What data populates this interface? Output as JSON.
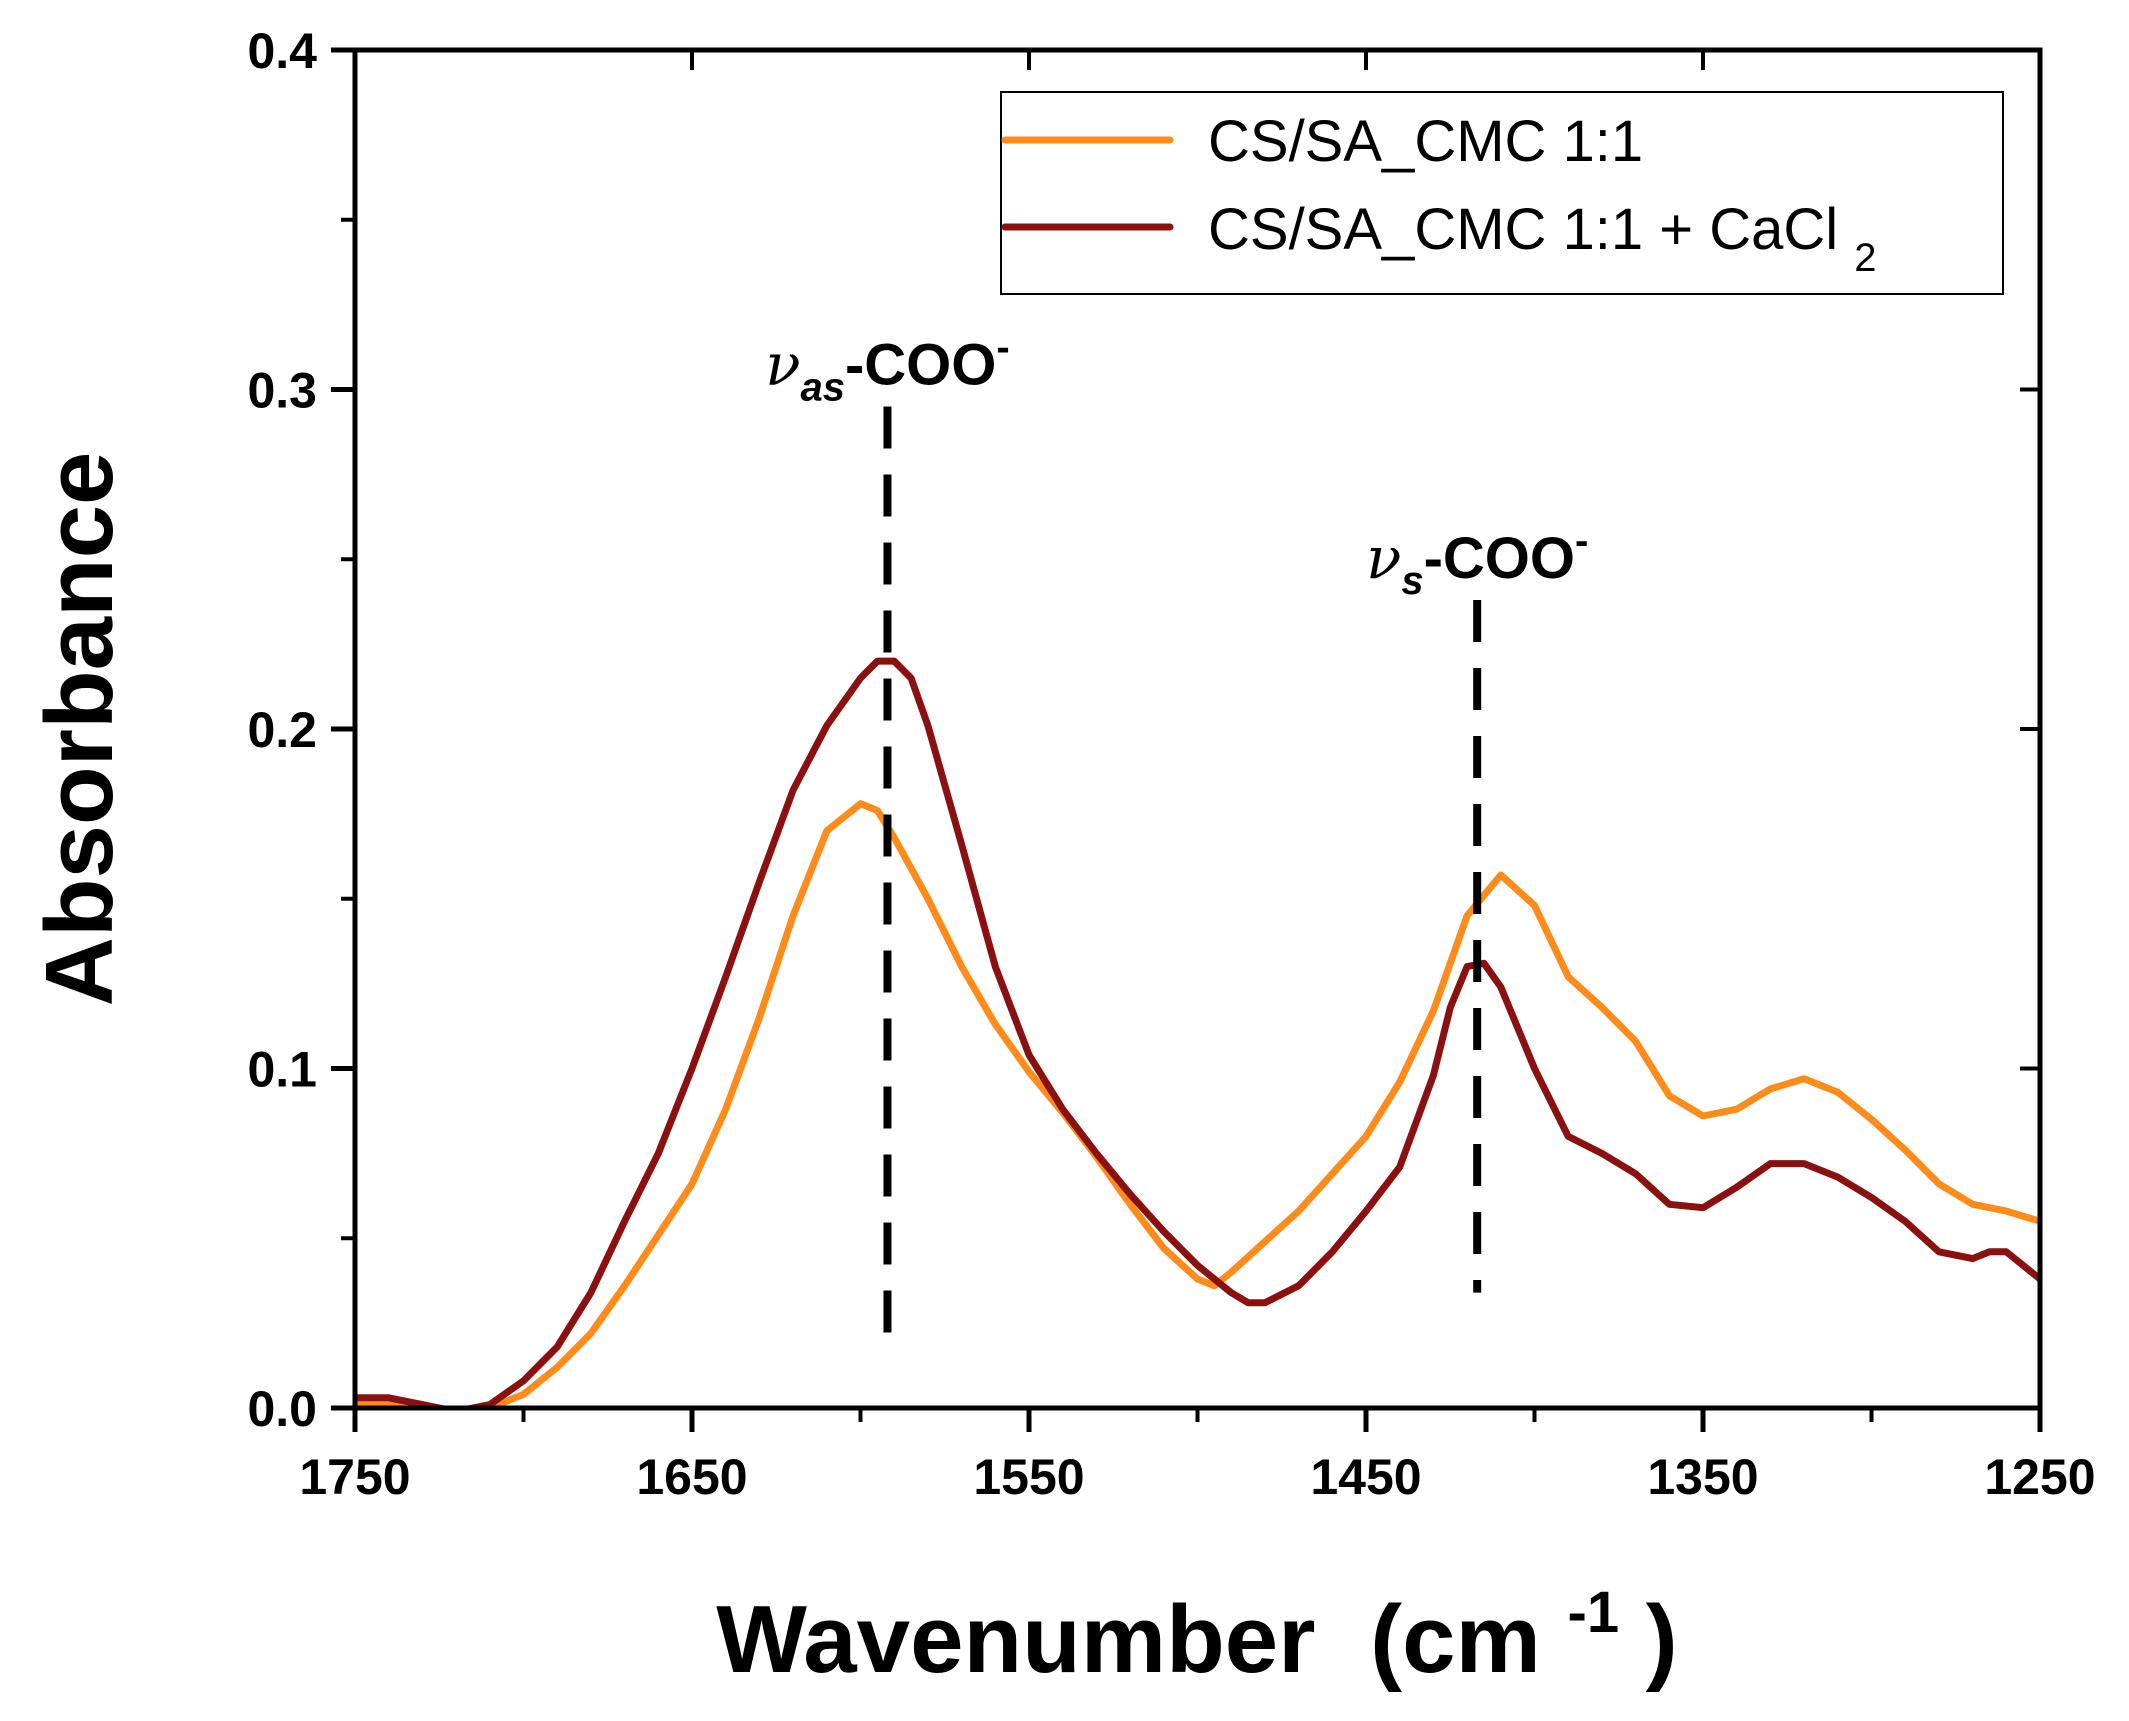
{
  "chart_data": {
    "type": "line",
    "title": "",
    "xlabel": "Wavenumber",
    "xlabel_unit_base": "(cm",
    "xlabel_unit_exp": "-1",
    "xlabel_unit_close": ")",
    "ylabel": "Absorbance",
    "xlim": [
      1750,
      1250
    ],
    "ylim": [
      0.0,
      0.4
    ],
    "x_ticks": [
      1750,
      1650,
      1550,
      1450,
      1350,
      1250
    ],
    "x_tick_labels": [
      "1750",
      "1650",
      "1550",
      "1450",
      "1350",
      "1250"
    ],
    "x_minor_ticks": [
      1700,
      1600,
      1500,
      1400,
      1300
    ],
    "y_ticks": [
      0.0,
      0.1,
      0.2,
      0.3,
      0.4
    ],
    "y_tick_labels": [
      "0.0",
      "0.1",
      "0.2",
      "0.3",
      "0.4"
    ],
    "y_minor_ticks": [
      0.05,
      0.15,
      0.25,
      0.35
    ],
    "grid": false,
    "legend_position": "top-right",
    "series": [
      {
        "name": "CS/SA_CMC 1:1",
        "name_text": "CS/SA_CMC 1:1",
        "color": "#FF8C1A",
        "x": [
          1750,
          1740,
          1730,
          1720,
          1710,
          1700,
          1690,
          1680,
          1670,
          1660,
          1650,
          1640,
          1630,
          1620,
          1610,
          1600,
          1595,
          1590,
          1580,
          1570,
          1560,
          1550,
          1540,
          1530,
          1520,
          1510,
          1500,
          1495,
          1490,
          1480,
          1470,
          1460,
          1450,
          1440,
          1430,
          1420,
          1410,
          1400,
          1390,
          1380,
          1370,
          1360,
          1350,
          1340,
          1330,
          1320,
          1310,
          1300,
          1290,
          1280,
          1270,
          1260,
          1250
        ],
        "y": [
          0.001,
          0.001,
          0.0,
          -0.001,
          0.0,
          0.004,
          0.012,
          0.022,
          0.036,
          0.051,
          0.066,
          0.088,
          0.115,
          0.145,
          0.17,
          0.178,
          0.176,
          0.168,
          0.15,
          0.13,
          0.113,
          0.099,
          0.087,
          0.074,
          0.06,
          0.047,
          0.038,
          0.036,
          0.04,
          0.049,
          0.058,
          0.069,
          0.08,
          0.096,
          0.117,
          0.145,
          0.157,
          0.148,
          0.127,
          0.118,
          0.108,
          0.092,
          0.086,
          0.088,
          0.094,
          0.097,
          0.093,
          0.085,
          0.076,
          0.066,
          0.06,
          0.058,
          0.055
        ]
      },
      {
        "name": "CS/SA_CMC 1:1 + CaCl2",
        "name_text": "CS/SA_CMC 1:1 + CaCl",
        "name_subscript": "2",
        "color": "#8B1010",
        "x": [
          1750,
          1740,
          1730,
          1720,
          1710,
          1700,
          1690,
          1680,
          1670,
          1660,
          1650,
          1640,
          1630,
          1620,
          1610,
          1600,
          1595,
          1590,
          1585,
          1580,
          1570,
          1560,
          1550,
          1540,
          1530,
          1520,
          1510,
          1500,
          1495,
          1490,
          1485,
          1480,
          1470,
          1460,
          1450,
          1440,
          1430,
          1425,
          1420,
          1415,
          1410,
          1400,
          1390,
          1380,
          1370,
          1360,
          1350,
          1340,
          1330,
          1320,
          1310,
          1300,
          1290,
          1280,
          1270,
          1265,
          1260,
          1250
        ],
        "y": [
          0.003,
          0.003,
          0.001,
          -0.001,
          0.001,
          0.008,
          0.018,
          0.034,
          0.055,
          0.075,
          0.1,
          0.127,
          0.155,
          0.182,
          0.201,
          0.215,
          0.22,
          0.22,
          0.215,
          0.201,
          0.166,
          0.13,
          0.104,
          0.088,
          0.075,
          0.063,
          0.052,
          0.042,
          0.038,
          0.034,
          0.031,
          0.031,
          0.036,
          0.046,
          0.058,
          0.071,
          0.098,
          0.118,
          0.13,
          0.131,
          0.124,
          0.1,
          0.08,
          0.075,
          0.069,
          0.06,
          0.059,
          0.065,
          0.072,
          0.072,
          0.068,
          0.062,
          0.055,
          0.046,
          0.044,
          0.046,
          0.046,
          0.038
        ]
      }
    ],
    "annotations": [
      {
        "id": "vas",
        "x": 1592,
        "y_from": 0.295,
        "y_to": 0.015,
        "symbol": "ν",
        "subscript": "as",
        "text": "-COO",
        "superscript": "-"
      },
      {
        "id": "vs",
        "x": 1417,
        "y_from": 0.238,
        "y_to": 0.034,
        "symbol": "ν",
        "subscript": "s",
        "text": "-COO",
        "superscript": "-"
      }
    ]
  }
}
